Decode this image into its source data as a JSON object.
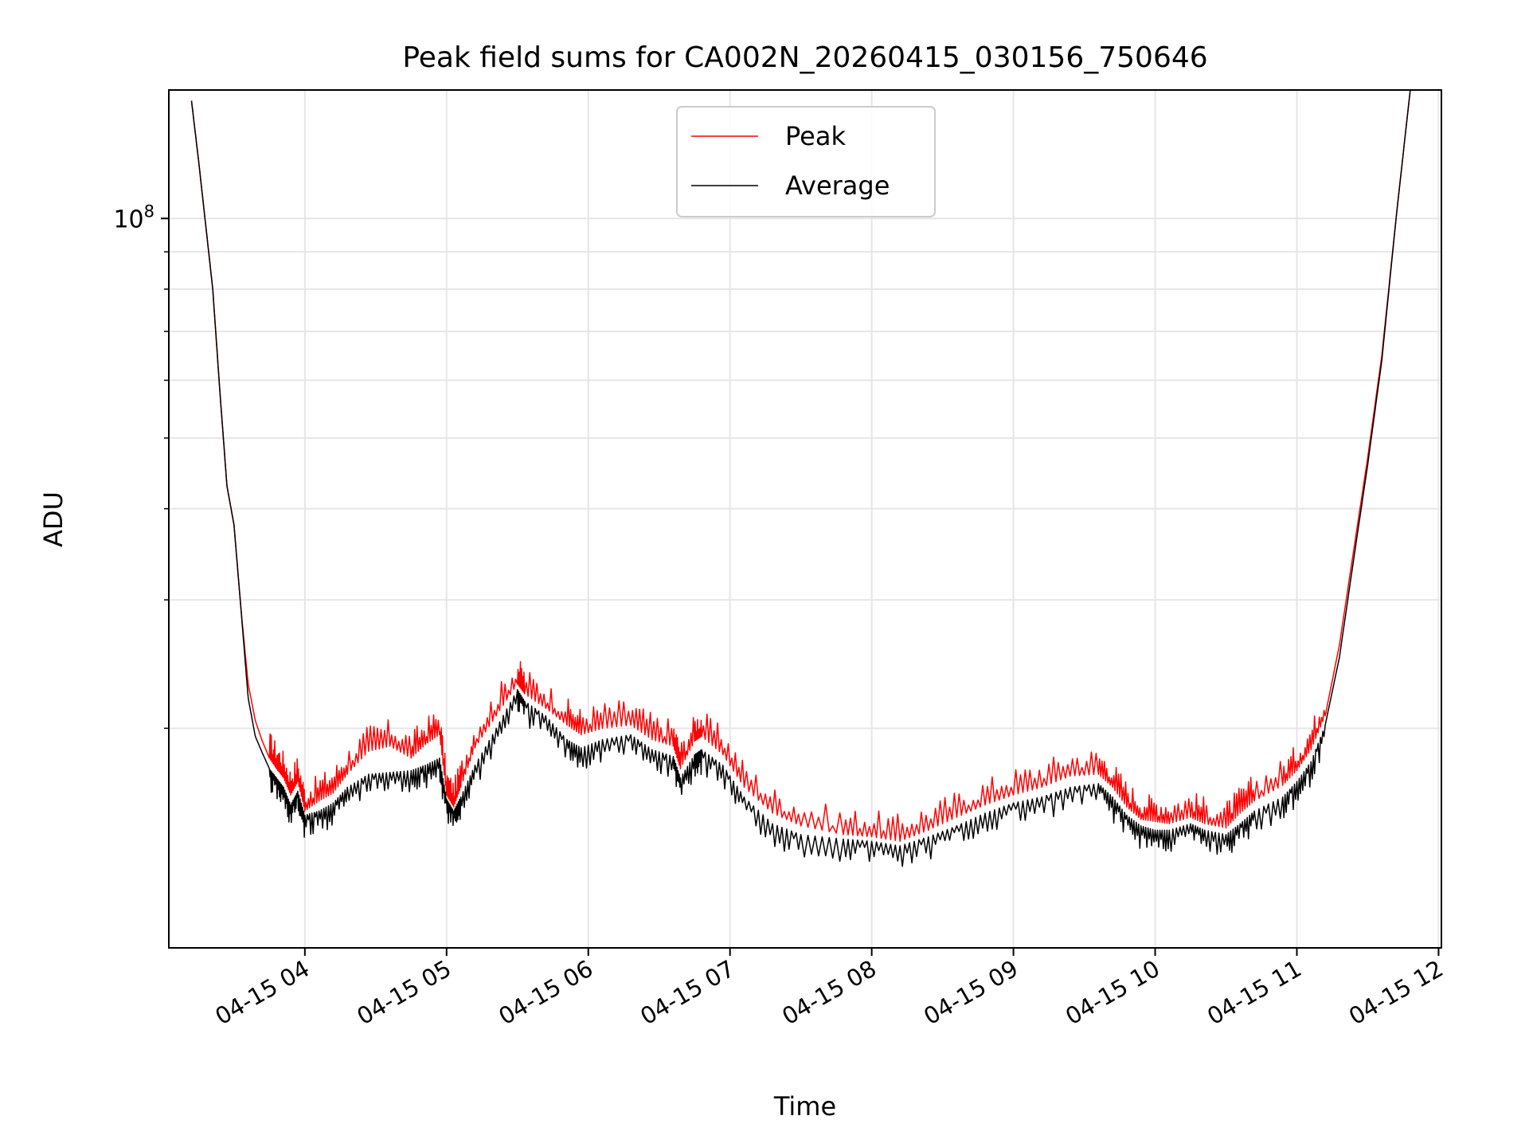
{
  "chart_data": {
    "type": "line",
    "title": "Peak field sums for CA002N_20260415_030156_750646",
    "xlabel": "Time",
    "ylabel": "ADU",
    "yscale": "log",
    "grid": true,
    "legend_position": "top-center",
    "x_units": "hours (UTC, 2026-04-15)",
    "xlim": [
      3.04,
      12.02
    ],
    "ylim": [
      10000000,
      150000000
    ],
    "x_tick_values": [
      4,
      5,
      6,
      7,
      8,
      9,
      10,
      11,
      12
    ],
    "x_tick_labels": [
      "04-15 04",
      "04-15 05",
      "04-15 06",
      "04-15 07",
      "04-15 08",
      "04-15 09",
      "04-15 10",
      "04-15 11",
      "04-15 12"
    ],
    "y_major_ticks": [
      {
        "value": 100000000,
        "base": "10",
        "exp": "8"
      }
    ],
    "y_minor_ticks": [
      20000000,
      30000000,
      40000000,
      50000000,
      60000000,
      70000000,
      80000000,
      90000000
    ],
    "series": [
      {
        "name": "Peak",
        "color": "#ff0000",
        "x": [
          3.2,
          3.25,
          3.3,
          3.35,
          3.4,
          3.45,
          3.5,
          3.55,
          3.6,
          3.65,
          3.7,
          3.75,
          3.8,
          3.85,
          3.9,
          3.95,
          4.0,
          4.1,
          4.2,
          4.3,
          4.45,
          4.6,
          4.75,
          4.85,
          4.95,
          5.0,
          5.05,
          5.1,
          5.2,
          5.35,
          5.5,
          5.55,
          5.7,
          5.85,
          5.95,
          6.1,
          6.3,
          6.45,
          6.6,
          6.65,
          6.75,
          6.8,
          6.95,
          7.1,
          7.3,
          7.5,
          7.8,
          8.0,
          8.2,
          8.4,
          8.6,
          8.8,
          9.0,
          9.2,
          9.4,
          9.6,
          9.7,
          9.8,
          9.9,
          10.0,
          10.1,
          10.25,
          10.35,
          10.5,
          10.6,
          10.7,
          10.9,
          11.0,
          11.1,
          11.2,
          11.3,
          11.4,
          11.5,
          11.6,
          11.7,
          11.8
        ],
        "y": [
          145000000,
          120000000,
          98000000,
          80000000,
          58000000,
          43000000,
          38000000,
          29000000,
          23000000,
          20500000,
          19200000,
          18200000,
          17600000,
          17100000,
          16200000,
          16900000,
          15400000,
          15900000,
          16300000,
          17300000,
          18600000,
          18900000,
          18200000,
          19000000,
          19600000,
          16200000,
          15600000,
          16600000,
          18800000,
          20800000,
          23000000,
          22300000,
          21300000,
          20200000,
          19600000,
          20000000,
          20200000,
          19300000,
          18900000,
          17600000,
          19200000,
          19500000,
          18400000,
          16600000,
          15300000,
          14700000,
          14300000,
          14200000,
          14000000,
          14500000,
          15100000,
          15700000,
          16200000,
          16600000,
          17200000,
          17300000,
          16600000,
          15600000,
          15000000,
          14900000,
          14800000,
          15100000,
          14800000,
          14600000,
          15300000,
          15900000,
          16700000,
          17500000,
          18700000,
          20800000,
          26000000,
          35000000,
          47000000,
          65000000,
          100000000,
          150000000
        ]
      },
      {
        "name": "Average",
        "color": "#000000",
        "x": [
          3.2,
          3.25,
          3.3,
          3.35,
          3.4,
          3.45,
          3.5,
          3.55,
          3.6,
          3.65,
          3.7,
          3.75,
          3.8,
          3.85,
          3.9,
          3.95,
          4.0,
          4.1,
          4.2,
          4.3,
          4.45,
          4.6,
          4.75,
          4.85,
          4.95,
          5.0,
          5.05,
          5.1,
          5.2,
          5.35,
          5.5,
          5.55,
          5.7,
          5.85,
          5.95,
          6.1,
          6.3,
          6.45,
          6.6,
          6.65,
          6.75,
          6.8,
          6.95,
          7.1,
          7.3,
          7.5,
          7.8,
          8.0,
          8.2,
          8.4,
          8.6,
          8.8,
          9.0,
          9.2,
          9.4,
          9.6,
          9.7,
          9.8,
          9.9,
          10.0,
          10.1,
          10.25,
          10.35,
          10.5,
          10.6,
          10.7,
          10.9,
          11.0,
          11.1,
          11.2,
          11.3,
          11.4,
          11.5,
          11.6,
          11.7,
          11.8
        ],
        "y": [
          145000000,
          120000000,
          98000000,
          80000000,
          58000000,
          43000000,
          38000000,
          29000000,
          22000000,
          19500000,
          18500000,
          17600000,
          17100000,
          16600000,
          15700000,
          16400000,
          15200000,
          15400000,
          15800000,
          16600000,
          17300000,
          17400000,
          17500000,
          17800000,
          18200000,
          16000000,
          15400000,
          16100000,
          17800000,
          20000000,
          22600000,
          21800000,
          20800000,
          19300000,
          18800000,
          19300000,
          19600000,
          18700000,
          18300000,
          17100000,
          18400000,
          18700000,
          17800000,
          16100000,
          14800000,
          14300000,
          14100000,
          14000000,
          13800000,
          14200000,
          14700000,
          15300000,
          15800000,
          16100000,
          16600000,
          16800000,
          16100000,
          15200000,
          14700000,
          14500000,
          14500000,
          14800000,
          14500000,
          14300000,
          14800000,
          15400000,
          16100000,
          16900000,
          18000000,
          20200000,
          25000000,
          34000000,
          46000000,
          64000000,
          100000000,
          150000000
        ]
      }
    ]
  }
}
